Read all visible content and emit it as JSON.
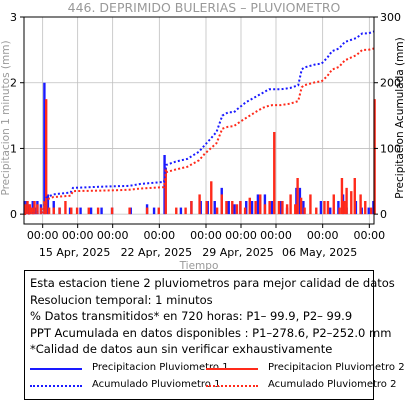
{
  "chart_data": {
    "type": "bar+line",
    "title": "446. DEPRIMIDO BULERIAS – PLUVIOMETRO",
    "xlabel": "Tiempo",
    "ylabel_left": "Precipitacion 1 minutos (mm)",
    "ylabel_right": "Precipitacion Acumulada (mm)",
    "ylim_left": [
      -0.15,
      3
    ],
    "ylim_right": [
      -15,
      300
    ],
    "yticks_left": [
      0,
      1,
      2,
      3
    ],
    "yticks_right": [
      0,
      100,
      200,
      300
    ],
    "xlim_days": [
      0,
      30
    ],
    "xticks": [
      {
        "day": 1.6,
        "time": "00:00",
        "date": ""
      },
      {
        "day": 4.6,
        "time": "00:00",
        "date": "15 Apr, 2025"
      },
      {
        "day": 7.6,
        "time": "00:00",
        "date": ""
      },
      {
        "day": 11.6,
        "time": "00:00",
        "date": "22 Apr, 2025"
      },
      {
        "day": 15.6,
        "time": "00:00",
        "date": ""
      },
      {
        "day": 18.6,
        "time": "00:00",
        "date": "29 Apr, 2025"
      },
      {
        "day": 21.6,
        "time": "00:00",
        "date": ""
      },
      {
        "day": 25.6,
        "time": "00:00",
        "date": "06 May, 2025"
      },
      {
        "day": 29.6,
        "time": "00:00",
        "date": ""
      }
    ],
    "grid": true,
    "series": [
      {
        "name": "Precipitacion Pluviometro 1",
        "kind": "bar",
        "color": "#1a1aff",
        "points": [
          [
            0.1,
            0.2
          ],
          [
            0.3,
            0.2
          ],
          [
            0.5,
            0.15
          ],
          [
            0.8,
            0.2
          ],
          [
            1.0,
            0.1
          ],
          [
            1.2,
            0.2
          ],
          [
            1.5,
            0.15
          ],
          [
            1.8,
            2.0
          ],
          [
            2.1,
            0.3
          ],
          [
            2.6,
            0.2
          ],
          [
            3.1,
            0.1
          ],
          [
            4.0,
            0.1
          ],
          [
            4.9,
            0.1
          ],
          [
            5.8,
            0.1
          ],
          [
            6.7,
            0.1
          ],
          [
            7.6,
            0.1
          ],
          [
            9.2,
            0.1
          ],
          [
            10.6,
            0.15
          ],
          [
            11.2,
            0.1
          ],
          [
            12.1,
            0.9
          ],
          [
            13.5,
            0.1
          ],
          [
            14.4,
            0.2
          ],
          [
            15.2,
            0.2
          ],
          [
            15.8,
            0.2
          ],
          [
            16.4,
            0.2
          ],
          [
            17.0,
            0.4
          ],
          [
            17.6,
            0.2
          ],
          [
            18.1,
            0.15
          ],
          [
            18.6,
            0.2
          ],
          [
            19.1,
            0.2
          ],
          [
            19.6,
            0.2
          ],
          [
            20.1,
            0.3
          ],
          [
            20.7,
            0.3
          ],
          [
            21.3,
            0.2
          ],
          [
            22.1,
            0.2
          ],
          [
            22.6,
            0.1
          ],
          [
            23.4,
            0.4
          ],
          [
            23.7,
            0.4
          ],
          [
            24.0,
            0.2
          ],
          [
            25.5,
            0.2
          ],
          [
            26.3,
            0.1
          ],
          [
            27.0,
            0.2
          ],
          [
            27.4,
            0.3
          ],
          [
            27.7,
            0.1
          ],
          [
            28.5,
            0.2
          ],
          [
            29.0,
            0.1
          ],
          [
            29.6,
            0.1
          ],
          [
            30.0,
            0.2
          ]
        ]
      },
      {
        "name": "Precipitacion Pluviometro 2",
        "kind": "bar",
        "color": "#ff2a1a",
        "points": [
          [
            0.05,
            0.15
          ],
          [
            0.25,
            0.2
          ],
          [
            0.45,
            0.15
          ],
          [
            0.65,
            0.1
          ],
          [
            0.85,
            0.2
          ],
          [
            1.1,
            0.15
          ],
          [
            1.4,
            0.1
          ],
          [
            1.7,
            0.2
          ],
          [
            1.85,
            1.75
          ],
          [
            2.1,
            0.1
          ],
          [
            2.5,
            0.1
          ],
          [
            3.0,
            0.1
          ],
          [
            3.5,
            0.2
          ],
          [
            4.0,
            0.1
          ],
          [
            4.5,
            0.1
          ],
          [
            5.5,
            0.1
          ],
          [
            6.3,
            0.1
          ],
          [
            7.5,
            0.1
          ],
          [
            9.0,
            0.1
          ],
          [
            10.5,
            0.1
          ],
          [
            11.5,
            0.1
          ],
          [
            12.1,
            0.7
          ],
          [
            13.0,
            0.1
          ],
          [
            13.8,
            0.1
          ],
          [
            14.3,
            0.2
          ],
          [
            15.0,
            0.3
          ],
          [
            15.6,
            0.2
          ],
          [
            16.0,
            0.5
          ],
          [
            16.5,
            0.1
          ],
          [
            16.9,
            0.3
          ],
          [
            17.3,
            0.2
          ],
          [
            17.8,
            0.2
          ],
          [
            18.2,
            0.15
          ],
          [
            18.5,
            0.2
          ],
          [
            18.9,
            0.1
          ],
          [
            19.3,
            0.25
          ],
          [
            19.8,
            0.2
          ],
          [
            20.2,
            0.3
          ],
          [
            20.6,
            0.15
          ],
          [
            21.0,
            0.2
          ],
          [
            21.4,
            1.25
          ],
          [
            21.8,
            0.2
          ],
          [
            22.1,
            0.2
          ],
          [
            22.5,
            0.15
          ],
          [
            22.8,
            0.3
          ],
          [
            23.2,
            0.15
          ],
          [
            23.4,
            0.55
          ],
          [
            23.7,
            0.25
          ],
          [
            24.0,
            0.1
          ],
          [
            24.5,
            0.3
          ],
          [
            25.0,
            0.1
          ],
          [
            25.7,
            0.2
          ],
          [
            26.0,
            0.2
          ],
          [
            26.5,
            0.3
          ],
          [
            27.0,
            0.1
          ],
          [
            27.2,
            0.55
          ],
          [
            27.4,
            0.2
          ],
          [
            27.6,
            0.4
          ],
          [
            28.0,
            0.35
          ],
          [
            28.3,
            0.55
          ],
          [
            28.8,
            0.3
          ],
          [
            29.2,
            0.2
          ],
          [
            29.7,
            0.1
          ],
          [
            30.0,
            1.75
          ]
        ]
      },
      {
        "name": "Acumulado Pluviometro 1",
        "kind": "line",
        "color": "#1a1aff",
        "points": [
          [
            0,
            0
          ],
          [
            1.6,
            3
          ],
          [
            1.9,
            25
          ],
          [
            2.5,
            30
          ],
          [
            4.0,
            33
          ],
          [
            4.2,
            40
          ],
          [
            7.0,
            42
          ],
          [
            9.0,
            43
          ],
          [
            10.0,
            46
          ],
          [
            12.0,
            49
          ],
          [
            12.2,
            75
          ],
          [
            13.0,
            80
          ],
          [
            14.0,
            84
          ],
          [
            15.0,
            95
          ],
          [
            15.5,
            105
          ],
          [
            16.0,
            115
          ],
          [
            16.5,
            125
          ],
          [
            17.0,
            150
          ],
          [
            17.5,
            155
          ],
          [
            18.0,
            155
          ],
          [
            18.3,
            160
          ],
          [
            19.0,
            170
          ],
          [
            20.0,
            180
          ],
          [
            20.5,
            185
          ],
          [
            21.0,
            190
          ],
          [
            21.3,
            190
          ],
          [
            22.0,
            190
          ],
          [
            22.8,
            192
          ],
          [
            23.5,
            196
          ],
          [
            23.8,
            220
          ],
          [
            24.0,
            223
          ],
          [
            25.0,
            228
          ],
          [
            25.5,
            229
          ],
          [
            26.0,
            238
          ],
          [
            26.4,
            248
          ],
          [
            27.0,
            252
          ],
          [
            27.5,
            262
          ],
          [
            28.0,
            265
          ],
          [
            28.5,
            268
          ],
          [
            29.0,
            275
          ],
          [
            29.5,
            275
          ],
          [
            30.0,
            278
          ]
        ]
      },
      {
        "name": "Acumulado Pluviometro 2",
        "kind": "line",
        "color": "#ff2a1a",
        "points": [
          [
            0,
            0
          ],
          [
            1.6,
            3
          ],
          [
            1.9,
            22
          ],
          [
            2.5,
            26
          ],
          [
            4.0,
            28
          ],
          [
            4.2,
            35
          ],
          [
            7.0,
            36
          ],
          [
            9.0,
            37
          ],
          [
            10.0,
            39
          ],
          [
            12.0,
            41
          ],
          [
            12.2,
            64
          ],
          [
            13.0,
            68
          ],
          [
            14.0,
            72
          ],
          [
            15.0,
            82
          ],
          [
            15.5,
            92
          ],
          [
            16.0,
            100
          ],
          [
            16.5,
            108
          ],
          [
            17.0,
            130
          ],
          [
            17.5,
            133
          ],
          [
            18.0,
            134
          ],
          [
            18.3,
            138
          ],
          [
            19.0,
            146
          ],
          [
            20.0,
            157
          ],
          [
            20.5,
            162
          ],
          [
            21.0,
            165
          ],
          [
            21.3,
            166
          ],
          [
            22.0,
            166
          ],
          [
            22.8,
            168
          ],
          [
            23.5,
            172
          ],
          [
            23.8,
            193
          ],
          [
            24.0,
            196
          ],
          [
            25.0,
            201
          ],
          [
            25.5,
            202
          ],
          [
            26.0,
            210
          ],
          [
            26.4,
            220
          ],
          [
            27.0,
            224
          ],
          [
            27.5,
            234
          ],
          [
            28.0,
            238
          ],
          [
            28.5,
            242
          ],
          [
            29.0,
            250
          ],
          [
            29.5,
            250
          ],
          [
            30.0,
            252
          ]
        ]
      }
    ]
  },
  "info": {
    "line1": "Esta estacion tiene 2 pluviometros para mejor calidad de datos",
    "line2": "Resolucion temporal: 1 minutos",
    "line3": "% Datos transmitidos* en 720 horas: P1– 99.9, P2– 99.9",
    "line4": "PPT Acumulada en datos disponibles : P1–278.6, P2–252.0 mm",
    "line5": "*Calidad de datos aun sin verificar exhaustivamente"
  },
  "legend": {
    "p1_bar": "Precipitacion Pluviometro 1",
    "p2_bar": "Precipitacion Pluviometro 2",
    "p1_acc": "Acumulado Pluviometro 1",
    "p2_acc": "Acumulado Pluviometro 2"
  },
  "colors": {
    "blue": "#1a1aff",
    "red": "#ff2a1a",
    "grid": "#bfbfbf",
    "muted": "#999999"
  }
}
